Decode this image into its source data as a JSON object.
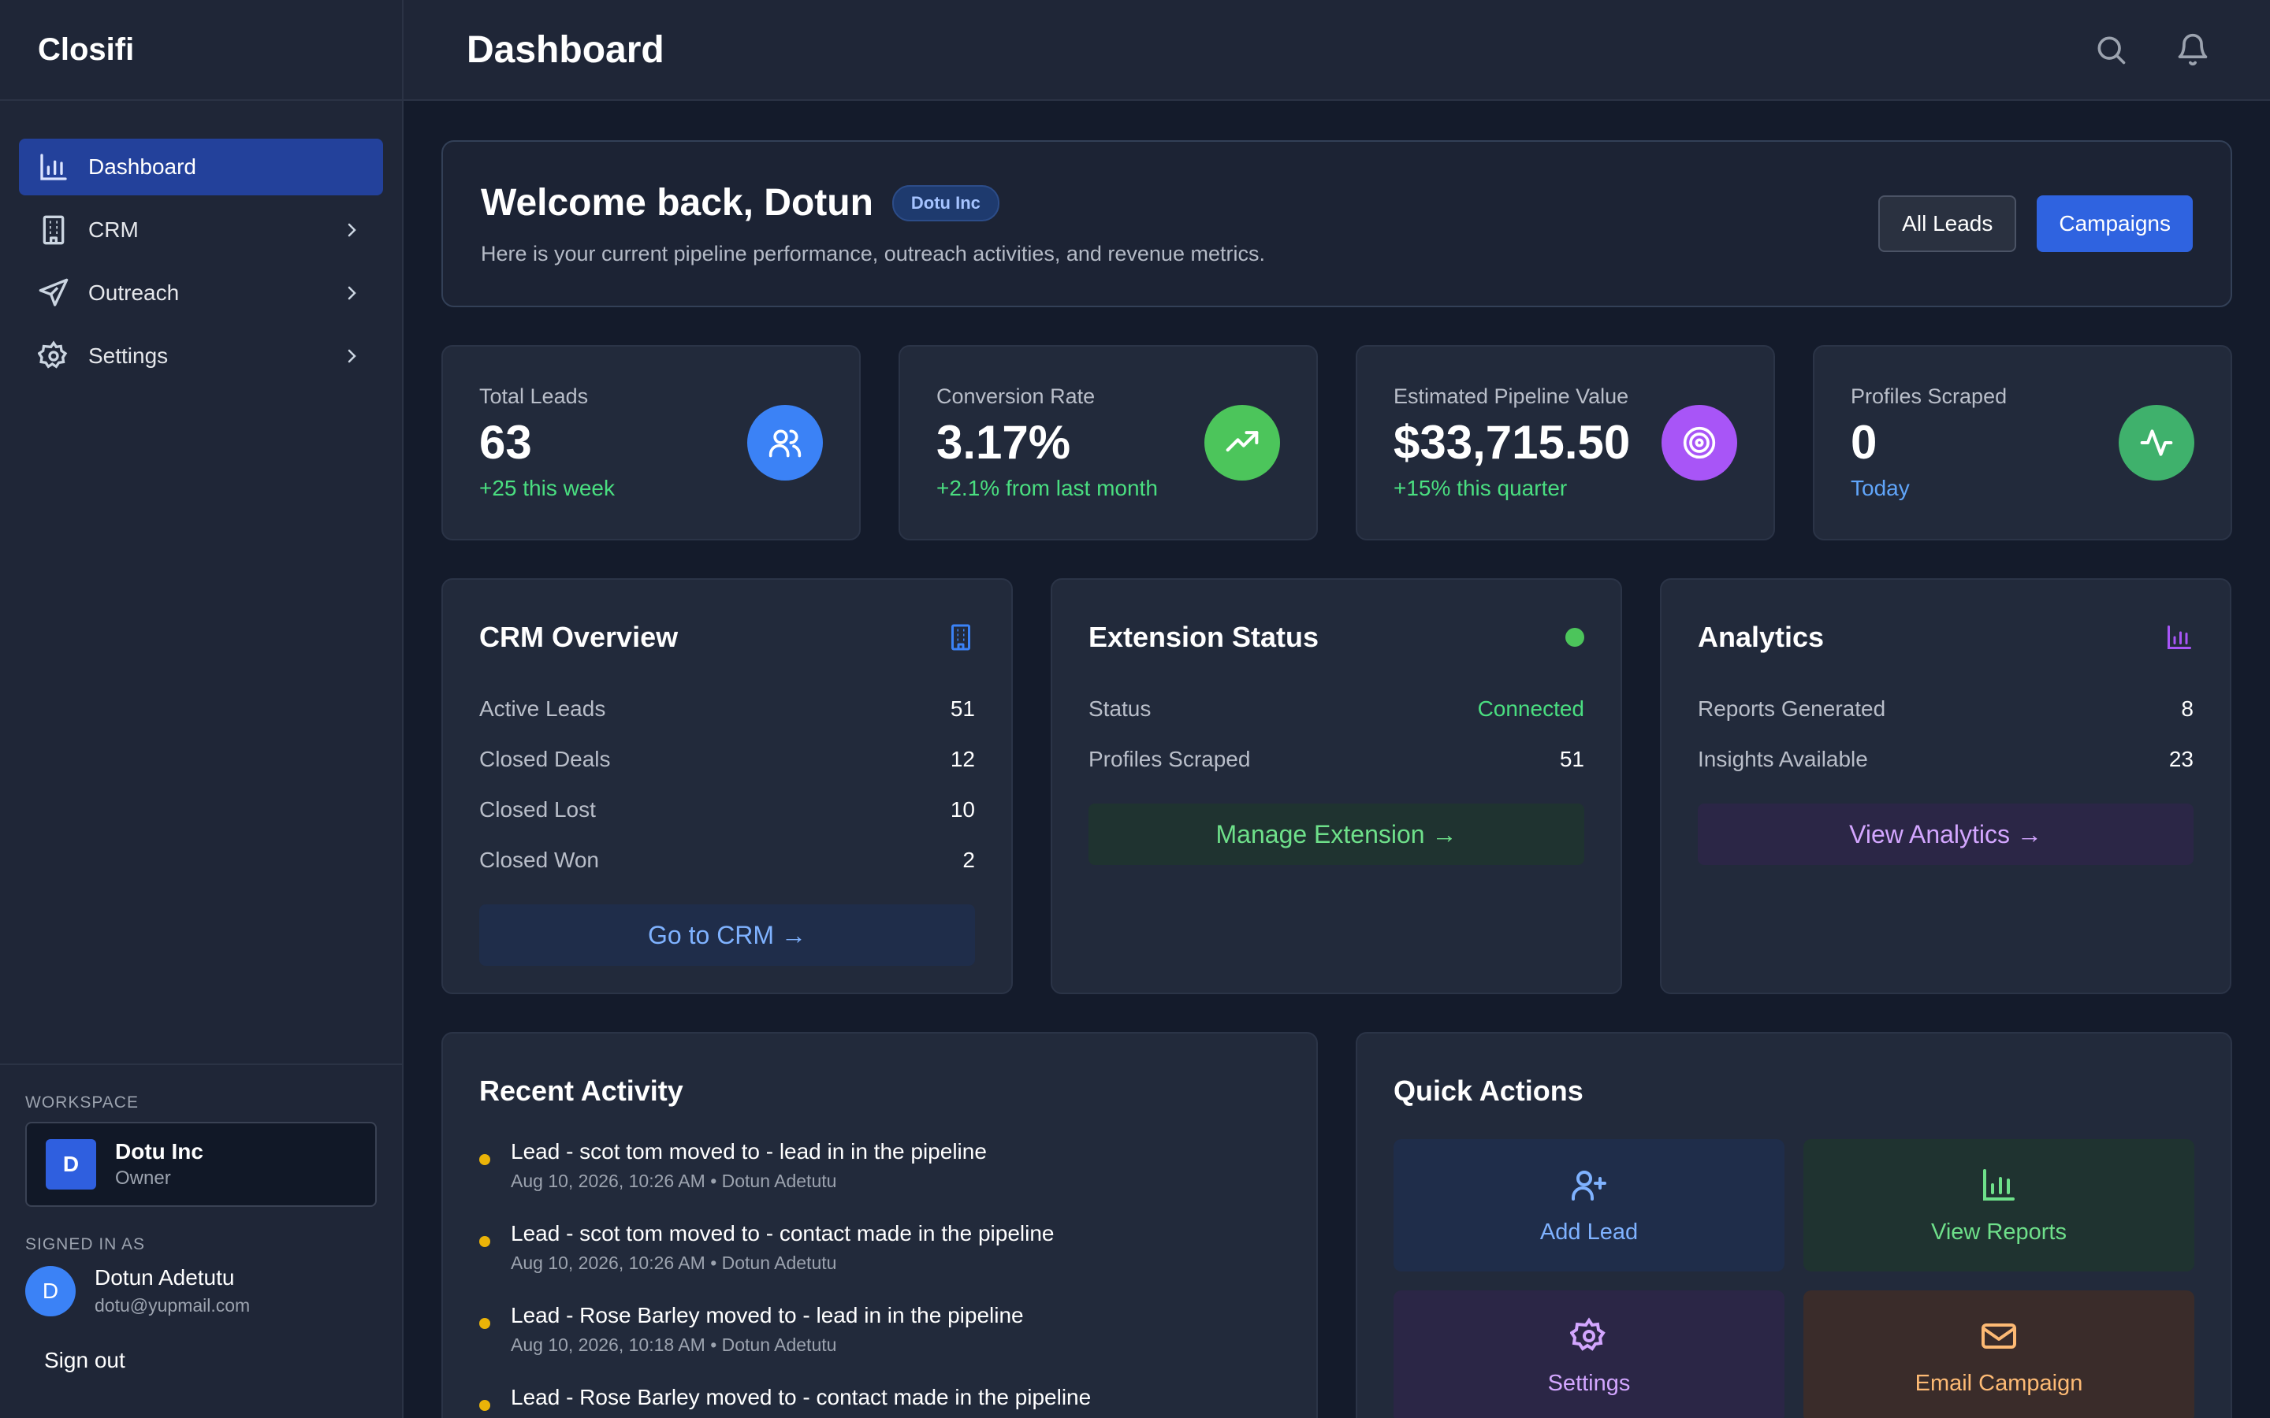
{
  "app": {
    "brand": "Closifi"
  },
  "sidebar": {
    "items": [
      {
        "label": "Dashboard",
        "icon": "bar-chart-icon",
        "active": true
      },
      {
        "label": "CRM",
        "icon": "building-icon"
      },
      {
        "label": "Outreach",
        "icon": "send-icon"
      },
      {
        "label": "Settings",
        "icon": "gear-icon"
      }
    ],
    "workspace_label": "WORKSPACE",
    "workspace": {
      "initial": "D",
      "name": "Dotu Inc",
      "role": "Owner"
    },
    "signed_in_label": "SIGNED IN AS",
    "user": {
      "initial": "D",
      "name": "Dotun Adetutu",
      "email": "dotu@yupmail.com"
    },
    "sign_out": "Sign out"
  },
  "header": {
    "title": "Dashboard",
    "icons": [
      "search-icon",
      "bell-icon"
    ]
  },
  "welcome": {
    "title": "Welcome back, Dotun",
    "badge": "Dotu Inc",
    "subtitle": "Here is your current pipeline performance, outreach activities, and revenue metrics.",
    "btn_all_leads": "All Leads",
    "btn_campaigns": "Campaigns"
  },
  "stats": [
    {
      "label": "Total Leads",
      "value": "63",
      "sub": "+25 this week",
      "icon": "users-icon",
      "color": "#3b82f6"
    },
    {
      "label": "Conversion Rate",
      "value": "3.17%",
      "sub": "+2.1% from last month",
      "icon": "trending-up-icon",
      "color": "#4cc55b"
    },
    {
      "label": "Estimated Pipeline Value",
      "value": "$33,715.50",
      "sub": "+15% this quarter",
      "icon": "target-icon",
      "color": "#a855f7"
    },
    {
      "label": "Profiles Scraped",
      "value": "0",
      "sub": "Today",
      "icon": "activity-icon",
      "color": "#3fb16c"
    }
  ],
  "crm": {
    "title": "CRM Overview",
    "rows": [
      {
        "label": "Active Leads",
        "value": "51"
      },
      {
        "label": "Closed Deals",
        "value": "12"
      },
      {
        "label": "Closed Lost",
        "value": "10"
      },
      {
        "label": "Closed Won",
        "value": "2"
      }
    ],
    "button": "Go to CRM →"
  },
  "extension": {
    "title": "Extension Status",
    "rows": [
      {
        "label": "Status",
        "value": "Connected"
      },
      {
        "label": "Profiles Scraped",
        "value": "51"
      }
    ],
    "button": "Manage Extension →"
  },
  "analytics": {
    "title": "Analytics",
    "rows": [
      {
        "label": "Reports Generated",
        "value": "8"
      },
      {
        "label": "Insights Available",
        "value": "23"
      }
    ],
    "button": "View Analytics →"
  },
  "activity": {
    "title": "Recent Activity",
    "items": [
      {
        "title": "Lead - scot tom moved to - lead in in the pipeline",
        "meta": "Aug 10, 2026, 10:26 AM • Dotun Adetutu"
      },
      {
        "title": "Lead - scot tom moved to - contact made in the pipeline",
        "meta": "Aug 10, 2026, 10:26 AM • Dotun Adetutu"
      },
      {
        "title": "Lead - Rose Barley moved to - lead in in the pipeline",
        "meta": "Aug 10, 2026, 10:18 AM • Dotun Adetutu"
      },
      {
        "title": "Lead - Rose Barley moved to - contact made in the pipeline",
        "meta": ""
      }
    ]
  },
  "quick_actions": {
    "title": "Quick Actions",
    "items": [
      {
        "label": "Add Lead",
        "icon": "user-plus-icon"
      },
      {
        "label": "View Reports",
        "icon": "bar-chart-icon"
      },
      {
        "label": "Settings",
        "icon": "gear-icon"
      },
      {
        "label": "Email Campaign",
        "icon": "mail-icon"
      }
    ]
  }
}
